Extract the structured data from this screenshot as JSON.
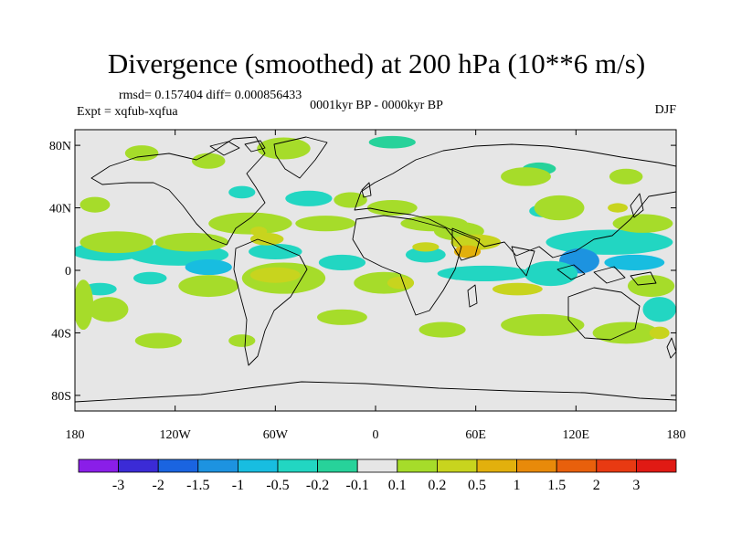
{
  "chart_data": {
    "type": "heatmap",
    "title": "Divergence (smoothed) at 200 hPa (10**6 m/s)",
    "stats": "rmsd= 0.157404 diff= 0.000856433",
    "experiment": "Expt = xqfub-xqfua",
    "period": "0001kyr BP - 0000kyr BP",
    "season": "DJF",
    "xlim": [
      -180,
      180
    ],
    "ylim": [
      -90,
      90
    ],
    "x_ticks": [
      {
        "value": -180,
        "label": "180"
      },
      {
        "value": -120,
        "label": "120W"
      },
      {
        "value": -60,
        "label": "60W"
      },
      {
        "value": 0,
        "label": "0"
      },
      {
        "value": 60,
        "label": "60E"
      },
      {
        "value": 120,
        "label": "120E"
      },
      {
        "value": 180,
        "label": "180"
      }
    ],
    "y_ticks": [
      {
        "value": 80,
        "label": "80N"
      },
      {
        "value": 40,
        "label": "40N"
      },
      {
        "value": 0,
        "label": "0"
      },
      {
        "value": -40,
        "label": "40S"
      },
      {
        "value": -80,
        "label": "80S"
      }
    ],
    "colorbar": {
      "levels": [
        "-3",
        "-2",
        "-1.5",
        "-1",
        "-0.5",
        "-0.2",
        "-0.1",
        "0.1",
        "0.2",
        "0.5",
        "1",
        "1.5",
        "2",
        "3"
      ],
      "colors": [
        "#8a1ee8",
        "#3b2bd6",
        "#1a64e0",
        "#1d93e0",
        "#18bde0",
        "#22d6c2",
        "#27d29a",
        "#e6e6e6",
        "#a6dc2a",
        "#c8d41e",
        "#e2b00d",
        "#e88a0a",
        "#e8600c",
        "#e83a12",
        "#e01a14"
      ]
    },
    "background_color": "#e6e6e6",
    "anomalies": [
      {
        "lon": -160,
        "lat": 12,
        "rx": 22,
        "ry": 6,
        "level": 5
      },
      {
        "lon": -118,
        "lat": 10,
        "rx": 30,
        "ry": 7,
        "level": 5
      },
      {
        "lon": -100,
        "lat": 2,
        "rx": 14,
        "ry": 5,
        "level": 4
      },
      {
        "lon": -60,
        "lat": 12,
        "rx": 16,
        "ry": 5,
        "level": 5
      },
      {
        "lon": -20,
        "lat": 5,
        "rx": 14,
        "ry": 5,
        "level": 5
      },
      {
        "lon": 30,
        "lat": 10,
        "rx": 12,
        "ry": 5,
        "level": 5
      },
      {
        "lon": 65,
        "lat": -2,
        "rx": 28,
        "ry": 5,
        "level": 5
      },
      {
        "lon": 140,
        "lat": 18,
        "rx": 38,
        "ry": 8,
        "level": 5
      },
      {
        "lon": 122,
        "lat": 6,
        "rx": 12,
        "ry": 8,
        "level": 3
      },
      {
        "lon": 155,
        "lat": 5,
        "rx": 18,
        "ry": 5,
        "level": 4
      },
      {
        "lon": 105,
        "lat": -2,
        "rx": 16,
        "ry": 8,
        "level": 5
      },
      {
        "lon": 100,
        "lat": 38,
        "rx": 8,
        "ry": 4,
        "level": 5
      },
      {
        "lon": -165,
        "lat": -12,
        "rx": 10,
        "ry": 4,
        "level": 5
      },
      {
        "lon": -135,
        "lat": -5,
        "rx": 10,
        "ry": 4,
        "level": 5
      },
      {
        "lon": -40,
        "lat": 46,
        "rx": 14,
        "ry": 5,
        "level": 5
      },
      {
        "lon": -80,
        "lat": 50,
        "rx": 8,
        "ry": 4,
        "level": 5
      },
      {
        "lon": 170,
        "lat": -25,
        "rx": 10,
        "ry": 8,
        "level": 5
      },
      {
        "lon": 10,
        "lat": 82,
        "rx": 14,
        "ry": 4,
        "level": 6
      },
      {
        "lon": 98,
        "lat": 65,
        "rx": 10,
        "ry": 4,
        "level": 6
      },
      {
        "lon": -155,
        "lat": 18,
        "rx": 22,
        "ry": 7,
        "level": 8
      },
      {
        "lon": -110,
        "lat": 18,
        "rx": 22,
        "ry": 6,
        "level": 8
      },
      {
        "lon": -75,
        "lat": 30,
        "rx": 25,
        "ry": 7,
        "level": 8
      },
      {
        "lon": -55,
        "lat": -5,
        "rx": 25,
        "ry": 10,
        "level": 8
      },
      {
        "lon": -100,
        "lat": -10,
        "rx": 18,
        "ry": 7,
        "level": 8
      },
      {
        "lon": -160,
        "lat": -25,
        "rx": 12,
        "ry": 8,
        "level": 8
      },
      {
        "lon": -168,
        "lat": 42,
        "rx": 9,
        "ry": 5,
        "level": 8
      },
      {
        "lon": -175,
        "lat": -22,
        "rx": 6,
        "ry": 16,
        "level": 8
      },
      {
        "lon": -140,
        "lat": 75,
        "rx": 10,
        "ry": 5,
        "level": 8
      },
      {
        "lon": -55,
        "lat": 78,
        "rx": 16,
        "ry": 7,
        "level": 8
      },
      {
        "lon": -100,
        "lat": 70,
        "rx": 10,
        "ry": 5,
        "level": 8
      },
      {
        "lon": -15,
        "lat": 45,
        "rx": 10,
        "ry": 5,
        "level": 8
      },
      {
        "lon": -30,
        "lat": 30,
        "rx": 18,
        "ry": 5,
        "level": 8
      },
      {
        "lon": 10,
        "lat": 40,
        "rx": 15,
        "ry": 5,
        "level": 8
      },
      {
        "lon": 35,
        "lat": 30,
        "rx": 20,
        "ry": 5,
        "level": 8
      },
      {
        "lon": 90,
        "lat": 60,
        "rx": 15,
        "ry": 6,
        "level": 8
      },
      {
        "lon": 150,
        "lat": 60,
        "rx": 10,
        "ry": 5,
        "level": 8
      },
      {
        "lon": 110,
        "lat": 40,
        "rx": 15,
        "ry": 8,
        "level": 8
      },
      {
        "lon": 5,
        "lat": -8,
        "rx": 18,
        "ry": 7,
        "level": 8
      },
      {
        "lon": 50,
        "lat": 25,
        "rx": 15,
        "ry": 6,
        "level": 8
      },
      {
        "lon": 160,
        "lat": 30,
        "rx": 18,
        "ry": 6,
        "level": 8
      },
      {
        "lon": 165,
        "lat": -10,
        "rx": 14,
        "ry": 7,
        "level": 8
      },
      {
        "lon": 100,
        "lat": -35,
        "rx": 25,
        "ry": 7,
        "level": 8
      },
      {
        "lon": 40,
        "lat": -38,
        "rx": 14,
        "ry": 5,
        "level": 8
      },
      {
        "lon": 150,
        "lat": -40,
        "rx": 20,
        "ry": 7,
        "level": 8
      },
      {
        "lon": -130,
        "lat": -45,
        "rx": 14,
        "ry": 5,
        "level": 8
      },
      {
        "lon": -80,
        "lat": -45,
        "rx": 8,
        "ry": 4,
        "level": 8
      },
      {
        "lon": -20,
        "lat": -30,
        "rx": 15,
        "ry": 5,
        "level": 8
      },
      {
        "lon": -65,
        "lat": 20,
        "rx": 10,
        "ry": 4,
        "level": 9
      },
      {
        "lon": -60,
        "lat": -3,
        "rx": 15,
        "ry": 5,
        "level": 9
      },
      {
        "lon": 15,
        "lat": -8,
        "rx": 8,
        "ry": 4,
        "level": 9
      },
      {
        "lon": 60,
        "lat": 18,
        "rx": 15,
        "ry": 5,
        "level": 9
      },
      {
        "lon": 85,
        "lat": -12,
        "rx": 15,
        "ry": 4,
        "level": 9
      },
      {
        "lon": 30,
        "lat": 15,
        "rx": 8,
        "ry": 3,
        "level": 9
      },
      {
        "lon": 55,
        "lat": 12,
        "rx": 8,
        "ry": 4,
        "level": 10
      },
      {
        "lon": 145,
        "lat": 40,
        "rx": 6,
        "ry": 3,
        "level": 9
      },
      {
        "lon": -70,
        "lat": 25,
        "rx": 5,
        "ry": 3,
        "level": 9
      },
      {
        "lon": 170,
        "lat": -40,
        "rx": 6,
        "ry": 4,
        "level": 9
      }
    ]
  }
}
